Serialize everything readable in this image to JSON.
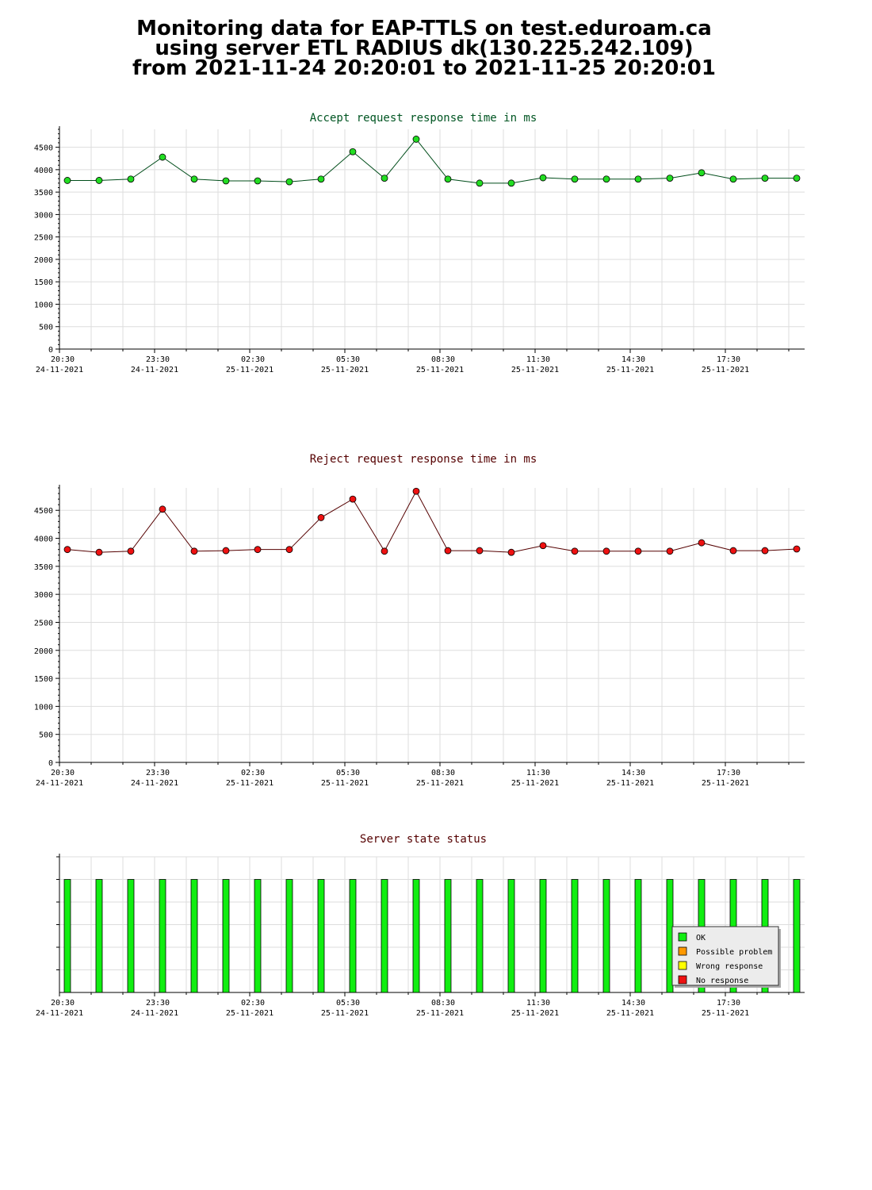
{
  "title_lines": [
    "Monitoring data for EAP-TTLS on test.eduroam.ca",
    "using server ETL RADIUS dk(130.225.242.109)",
    "from 2021-11-24 20:20:01 to 2021-11-25 20:20:01"
  ],
  "colors": {
    "accept_line": "#004d1a",
    "accept_marker": "#22dd22",
    "accept_title": "#005522",
    "reject_line": "#550000",
    "reject_marker": "#ee1111",
    "reject_title": "#550000",
    "status_title": "#550000",
    "ok": "#11ee11",
    "possible_problem": "#ff9900",
    "wrong_response": "#ffff00",
    "no_response": "#ee1111",
    "grid": "#dddddd"
  },
  "chart_data": [
    {
      "id": "accept",
      "type": "line",
      "title": "Accept request response time in ms",
      "ylim": [
        0,
        4900
      ],
      "yticks": [
        0,
        500,
        1000,
        1500,
        2000,
        2500,
        3000,
        3500,
        4000,
        4500
      ],
      "xlim": [
        0,
        47
      ],
      "xticks": [
        {
          "x": 0,
          "time": "20:30",
          "date": "24-11-2021"
        },
        {
          "x": 6,
          "time": "23:30",
          "date": "24-11-2021"
        },
        {
          "x": 12,
          "time": "02:30",
          "date": "25-11-2021"
        },
        {
          "x": 18,
          "time": "05:30",
          "date": "25-11-2021"
        },
        {
          "x": 24,
          "time": "08:30",
          "date": "25-11-2021"
        },
        {
          "x": 30,
          "time": "11:30",
          "date": "25-11-2021"
        },
        {
          "x": 36,
          "time": "14:30",
          "date": "25-11-2021"
        },
        {
          "x": 42,
          "time": "17:30",
          "date": "25-11-2021"
        }
      ],
      "x": [
        0.5,
        2.5,
        4.5,
        6.5,
        8.5,
        10.5,
        12.5,
        14.5,
        16.5,
        18.5,
        20.5,
        22.5,
        24.5,
        26.5,
        28.5,
        30.5,
        32.5,
        34.5,
        36.5,
        38.5,
        40.5,
        42.5,
        44.5,
        46.5
      ],
      "values": [
        3760,
        3760,
        3790,
        4280,
        3790,
        3750,
        3750,
        3730,
        3790,
        4400,
        3810,
        4680,
        3790,
        3700,
        3700,
        3820,
        3790,
        3790,
        3790,
        3810,
        3930,
        3790,
        3810,
        3810
      ]
    },
    {
      "id": "reject",
      "type": "line",
      "title": "Reject request response time in ms",
      "ylim": [
        0,
        4900
      ],
      "yticks": [
        0,
        500,
        1000,
        1500,
        2000,
        2500,
        3000,
        3500,
        4000,
        4500
      ],
      "xlim": [
        0,
        47
      ],
      "xticks": [
        {
          "x": 0,
          "time": "20:30",
          "date": "24-11-2021"
        },
        {
          "x": 6,
          "time": "23:30",
          "date": "24-11-2021"
        },
        {
          "x": 12,
          "time": "02:30",
          "date": "25-11-2021"
        },
        {
          "x": 18,
          "time": "05:30",
          "date": "25-11-2021"
        },
        {
          "x": 24,
          "time": "08:30",
          "date": "25-11-2021"
        },
        {
          "x": 30,
          "time": "11:30",
          "date": "25-11-2021"
        },
        {
          "x": 36,
          "time": "14:30",
          "date": "25-11-2021"
        },
        {
          "x": 42,
          "time": "17:30",
          "date": "25-11-2021"
        }
      ],
      "x": [
        0.5,
        2.5,
        4.5,
        6.5,
        8.5,
        10.5,
        12.5,
        14.5,
        16.5,
        18.5,
        20.5,
        22.5,
        24.5,
        26.5,
        28.5,
        30.5,
        32.5,
        34.5,
        36.5,
        38.5,
        40.5,
        42.5,
        44.5,
        46.5
      ],
      "values": [
        3800,
        3750,
        3770,
        4520,
        3770,
        3780,
        3800,
        3800,
        4370,
        4700,
        3770,
        4840,
        3780,
        3780,
        3750,
        3870,
        3770,
        3770,
        3770,
        3770,
        3920,
        3780,
        3780,
        3810
      ]
    },
    {
      "id": "status",
      "type": "bar",
      "title": "Server state status",
      "ylim": [
        0,
        6
      ],
      "xlim": [
        0,
        47
      ],
      "xticks": [
        {
          "x": 0,
          "time": "20:30",
          "date": "24-11-2021"
        },
        {
          "x": 6,
          "time": "23:30",
          "date": "24-11-2021"
        },
        {
          "x": 12,
          "time": "02:30",
          "date": "25-11-2021"
        },
        {
          "x": 18,
          "time": "05:30",
          "date": "25-11-2021"
        },
        {
          "x": 24,
          "time": "08:30",
          "date": "25-11-2021"
        },
        {
          "x": 30,
          "time": "11:30",
          "date": "25-11-2021"
        },
        {
          "x": 36,
          "time": "14:30",
          "date": "25-11-2021"
        },
        {
          "x": 42,
          "time": "17:30",
          "date": "25-11-2021"
        }
      ],
      "x": [
        0.5,
        2.5,
        4.5,
        6.5,
        8.5,
        10.5,
        12.5,
        14.5,
        16.5,
        18.5,
        20.5,
        22.5,
        24.5,
        26.5,
        28.5,
        30.5,
        32.5,
        34.5,
        36.5,
        38.5,
        40.5,
        42.5,
        44.5,
        46.5
      ],
      "values": [
        5,
        5,
        5,
        5,
        5,
        5,
        5,
        5,
        5,
        5,
        5,
        5,
        5,
        5,
        5,
        5,
        5,
        5,
        5,
        5,
        5,
        5,
        5,
        5
      ],
      "states": [
        "OK",
        "OK",
        "OK",
        "OK",
        "OK",
        "OK",
        "OK",
        "OK",
        "OK",
        "OK",
        "OK",
        "OK",
        "OK",
        "OK",
        "OK",
        "OK",
        "OK",
        "OK",
        "OK",
        "OK",
        "OK",
        "OK",
        "OK",
        "OK"
      ],
      "legend": {
        "position": "bottom-right",
        "entries": [
          {
            "label": "OK",
            "color_key": "ok"
          },
          {
            "label": "Possible problem",
            "color_key": "possible_problem"
          },
          {
            "label": "Wrong response",
            "color_key": "wrong_response"
          },
          {
            "label": "No response",
            "color_key": "no_response"
          }
        ]
      }
    }
  ]
}
